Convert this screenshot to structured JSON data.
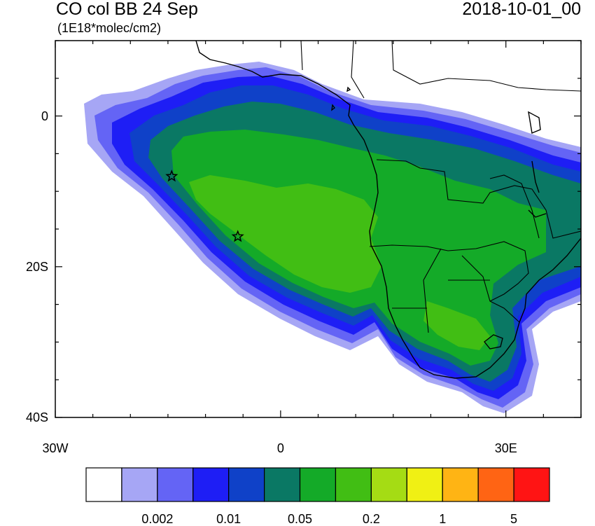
{
  "header": {
    "title": "CO col BB 24 Sep",
    "units": "(1E18*molec/cm2)",
    "date": "2018-10-01_00"
  },
  "axes": {
    "x_ticks": [
      {
        "lon": -30,
        "label": "30W"
      },
      {
        "lon": 0,
        "label": "0"
      },
      {
        "lon": 30,
        "label": "30E"
      }
    ],
    "y_ticks": [
      {
        "lat": 0,
        "label": "0"
      },
      {
        "lat": -20,
        "label": "20S"
      },
      {
        "lat": -40,
        "label": "40S"
      }
    ],
    "lon_range": [
      -30,
      40
    ],
    "lat_range": [
      -40,
      10
    ]
  },
  "markers": [
    {
      "name": "site-star-1",
      "lon": -14.5,
      "lat": -8
    },
    {
      "name": "site-star-2",
      "lon": -5.7,
      "lat": -16
    }
  ],
  "colorbar": {
    "colors": [
      "#ffffff",
      "#a6a6f5",
      "#6464f5",
      "#1e1ef5",
      "#0f41c8",
      "#0a7864",
      "#14aa28",
      "#41be14",
      "#a5dc14",
      "#f0f014",
      "#ffb414",
      "#ff6414",
      "#ff1414"
    ],
    "labels": [
      {
        "index": 2,
        "text": "0.002"
      },
      {
        "index": 4,
        "text": "0.01"
      },
      {
        "index": 6,
        "text": "0.05"
      },
      {
        "index": 8,
        "text": "0.2"
      },
      {
        "index": 10,
        "text": "1"
      },
      {
        "index": 12,
        "text": "5"
      }
    ]
  }
}
